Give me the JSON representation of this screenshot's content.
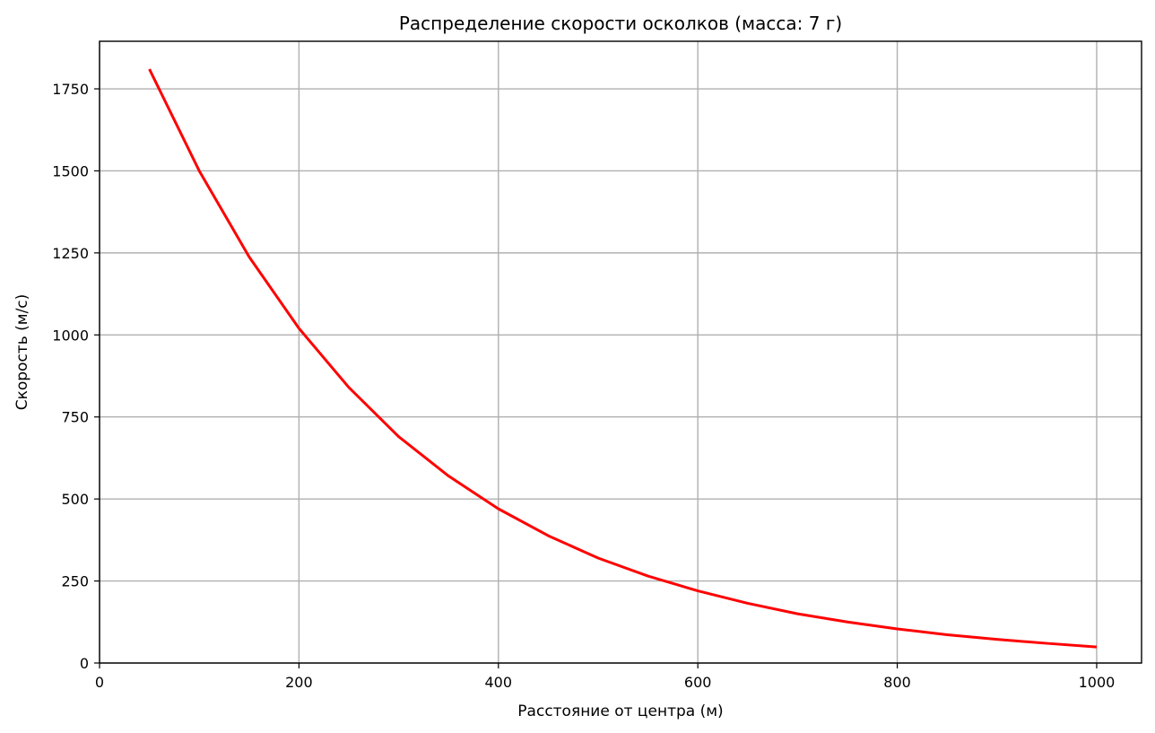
{
  "chart_data": {
    "type": "line",
    "title": "Распределение скорости осколков (масса: 7 г)",
    "xlabel": "Расстояние от центра (м)",
    "ylabel": "Скорость (м/с)",
    "xlim": [
      0,
      1045
    ],
    "ylim": [
      0,
      1895
    ],
    "xticks": [
      0,
      200,
      400,
      600,
      800,
      1000
    ],
    "yticks": [
      0,
      250,
      500,
      750,
      1000,
      1250,
      1500,
      1750
    ],
    "x_tick_labels": [
      "0",
      "200",
      "400",
      "600",
      "800",
      "1000"
    ],
    "y_tick_labels": [
      "0",
      "250",
      "500",
      "750",
      "1000",
      "1250",
      "1500",
      "1750"
    ],
    "grid": true,
    "series": [
      {
        "color": "#ff0000",
        "x": [
          50,
          100,
          150,
          200,
          250,
          300,
          350,
          400,
          450,
          500,
          550,
          600,
          650,
          700,
          750,
          800,
          850,
          900,
          950,
          1000
        ],
        "y": [
          1810,
          1500,
          1238,
          1020,
          840,
          690,
          570,
          470,
          388,
          320,
          265,
          220,
          182,
          150,
          125,
          104,
          86,
          72,
          60,
          49
        ]
      }
    ]
  }
}
